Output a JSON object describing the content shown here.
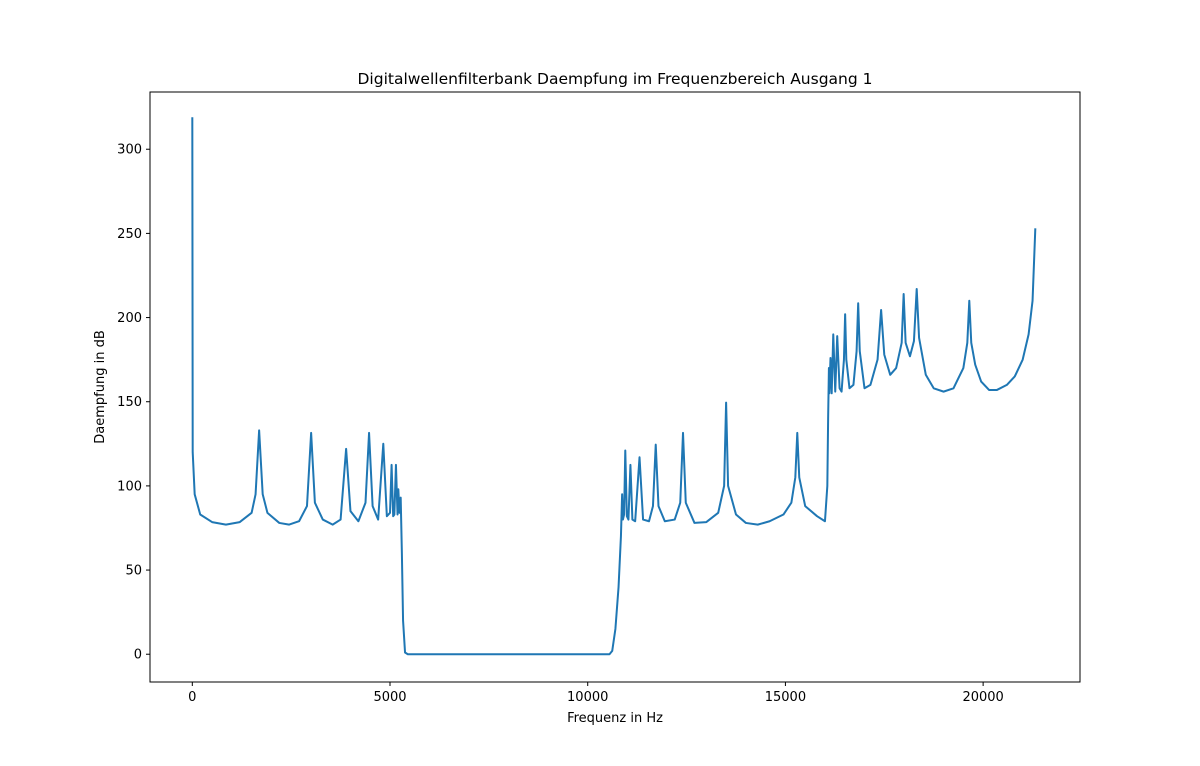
{
  "chart_data": {
    "type": "line",
    "title": "Digitalwellenfilterbank Daempfung im Frequenzbereich Ausgang 1",
    "xlabel": "Frequenz in Hz",
    "ylabel": "Daempfung in dB",
    "xlim": [
      -1070,
      22450
    ],
    "ylim": [
      -16.5,
      334
    ],
    "xticks": [
      0,
      5000,
      10000,
      15000,
      20000
    ],
    "xtick_labels": [
      "0",
      "5000",
      "10000",
      "15000",
      "20000"
    ],
    "yticks": [
      0,
      50,
      100,
      150,
      200,
      250,
      300
    ],
    "ytick_labels": [
      "0",
      "50",
      "100",
      "150",
      "200",
      "250",
      "300"
    ],
    "grid": false,
    "legend": "none",
    "series": [
      {
        "color": "#1f77b4",
        "baseline": [
          [
            0,
            319
          ],
          [
            10,
            120
          ],
          [
            60,
            95
          ],
          [
            200,
            83
          ],
          [
            500,
            78.5
          ],
          [
            850,
            77
          ],
          [
            1200,
            78.5
          ],
          [
            1500,
            84
          ],
          [
            1600,
            95
          ],
          [
            1690,
            133
          ],
          [
            1780,
            95
          ],
          [
            1900,
            84
          ],
          [
            2200,
            78
          ],
          [
            2450,
            77
          ],
          [
            2700,
            79
          ],
          [
            2900,
            88
          ],
          [
            3005,
            131.5
          ],
          [
            3100,
            90
          ],
          [
            3300,
            80
          ],
          [
            3550,
            77
          ],
          [
            3750,
            80
          ],
          [
            3890,
            122
          ],
          [
            4000,
            85
          ],
          [
            4200,
            79
          ],
          [
            4380,
            90
          ],
          [
            4470,
            131.5
          ],
          [
            4560,
            88
          ],
          [
            4700,
            80
          ],
          [
            4830,
            125
          ],
          [
            4920,
            82
          ],
          [
            5000,
            84
          ],
          [
            5040,
            112.5
          ],
          [
            5080,
            82
          ],
          [
            5110,
            83
          ],
          [
            5150,
            112.5
          ],
          [
            5190,
            83
          ],
          [
            5210,
            98
          ],
          [
            5240,
            84
          ],
          [
            5270,
            93
          ],
          [
            5300,
            60
          ],
          [
            5330,
            20
          ],
          [
            5380,
            1
          ],
          [
            5450,
            0
          ],
          [
            10550,
            0
          ],
          [
            10620,
            2
          ],
          [
            10700,
            15
          ],
          [
            10780,
            40
          ],
          [
            10840,
            70
          ],
          [
            10870,
            95
          ],
          [
            10890,
            80
          ],
          [
            10920,
            83
          ],
          [
            10950,
            121
          ],
          [
            10990,
            82
          ],
          [
            11030,
            80
          ],
          [
            11080,
            112.5
          ],
          [
            11130,
            80
          ],
          [
            11200,
            79
          ],
          [
            11310,
            117
          ],
          [
            11400,
            80
          ],
          [
            11550,
            79
          ],
          [
            11650,
            88
          ],
          [
            11720,
            124.5
          ],
          [
            11790,
            88
          ],
          [
            11950,
            79
          ],
          [
            12200,
            80
          ],
          [
            12340,
            90
          ],
          [
            12410,
            131.5
          ],
          [
            12480,
            90
          ],
          [
            12700,
            78
          ],
          [
            13000,
            78.5
          ],
          [
            13300,
            84
          ],
          [
            13450,
            100
          ],
          [
            13500,
            149.5
          ],
          [
            13550,
            100
          ],
          [
            13750,
            83
          ],
          [
            14000,
            78
          ],
          [
            14300,
            77
          ],
          [
            14600,
            79
          ],
          [
            14950,
            83
          ],
          [
            15150,
            90
          ],
          [
            15250,
            105
          ],
          [
            15300,
            131.5
          ],
          [
            15350,
            105
          ],
          [
            15500,
            88
          ],
          [
            15800,
            82
          ],
          [
            16000,
            79
          ],
          [
            16060,
            100
          ],
          [
            16080,
            140
          ],
          [
            16100,
            170
          ],
          [
            16110,
            155
          ],
          [
            16140,
            176
          ],
          [
            16170,
            155
          ],
          [
            16210,
            190
          ],
          [
            16260,
            156
          ],
          [
            16310,
            189
          ],
          [
            16370,
            158
          ],
          [
            16420,
            156
          ],
          [
            16480,
            175
          ],
          [
            16510,
            202
          ],
          [
            16540,
            175
          ],
          [
            16620,
            158
          ],
          [
            16720,
            160
          ],
          [
            16800,
            180
          ],
          [
            16840,
            208.5
          ],
          [
            16880,
            180
          ],
          [
            17000,
            158
          ],
          [
            17150,
            160
          ],
          [
            17330,
            175
          ],
          [
            17420,
            204.5
          ],
          [
            17500,
            178
          ],
          [
            17650,
            166
          ],
          [
            17800,
            170
          ],
          [
            17940,
            185
          ],
          [
            17990,
            214
          ],
          [
            18040,
            185
          ],
          [
            18150,
            177
          ],
          [
            18250,
            186
          ],
          [
            18320,
            217
          ],
          [
            18380,
            188
          ],
          [
            18550,
            166
          ],
          [
            18750,
            158
          ],
          [
            19000,
            156
          ],
          [
            19250,
            158
          ],
          [
            19500,
            170
          ],
          [
            19600,
            185
          ],
          [
            19650,
            210
          ],
          [
            19700,
            185
          ],
          [
            19800,
            172
          ],
          [
            19950,
            162
          ],
          [
            20150,
            157
          ],
          [
            20350,
            157
          ],
          [
            20600,
            160
          ],
          [
            20800,
            165
          ],
          [
            21000,
            175
          ],
          [
            21150,
            190
          ],
          [
            21250,
            210
          ],
          [
            21320,
            253
          ]
        ]
      }
    ]
  }
}
